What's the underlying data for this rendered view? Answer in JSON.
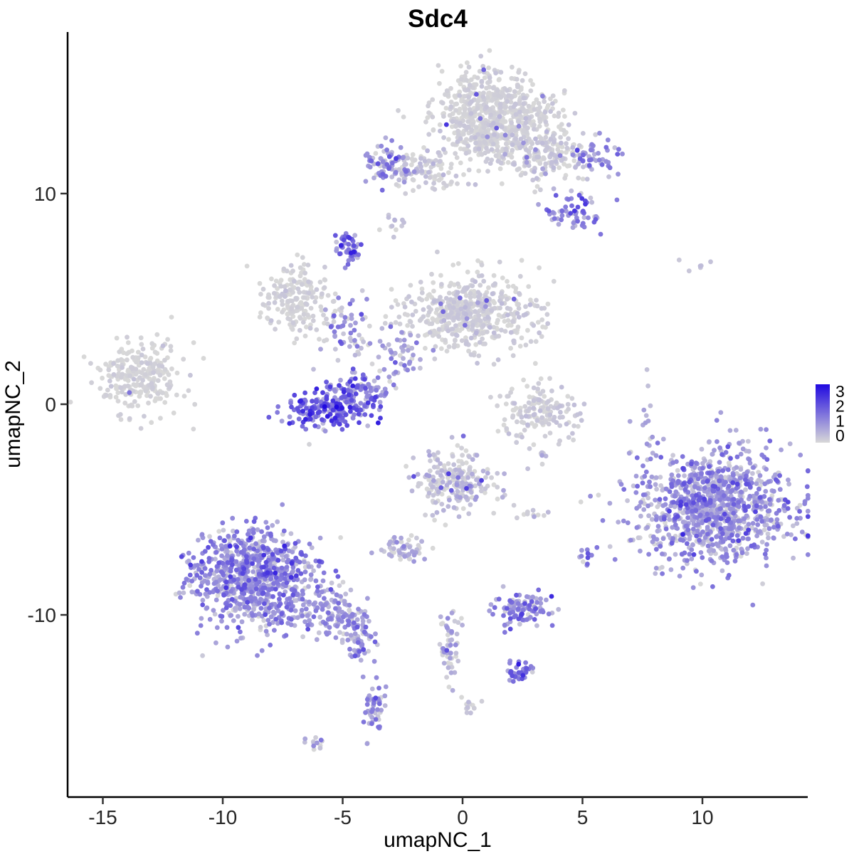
{
  "page": {
    "background": "#FFFFFF"
  },
  "chart_data": {
    "type": "scatter",
    "title": "Sdc4",
    "xlabel": "umapNC_1",
    "ylabel": "umapNC_2",
    "x_ticks": [
      -15,
      -10,
      -5,
      0,
      5,
      10
    ],
    "y_ticks": [
      -10,
      0,
      10
    ],
    "x_range": [
      -16.4,
      14.4
    ],
    "y_range": [
      -18.5,
      17.7
    ],
    "grid": false,
    "axis_color": "#000000",
    "tick_color": "#333333",
    "point_radius": 3.4,
    "seed": 42,
    "legend": {
      "position": "right",
      "ticks": [
        3,
        2,
        1,
        0
      ],
      "min": 0,
      "max": 3,
      "color_low": "#D8D8D8",
      "color_high": "#2009E0"
    },
    "clusters": [
      {
        "name": "top-main",
        "cx": 1.4,
        "cy": 13.9,
        "sx": 1.3,
        "sy": 0.95,
        "n": 600,
        "e": 0.06,
        "es": 0.1,
        "hot": 0.015,
        "he": 1.6
      },
      {
        "name": "top-main-south-neck",
        "cx": 1.0,
        "cy": 12.4,
        "sx": 0.8,
        "sy": 0.55,
        "n": 130,
        "e": 0.08,
        "es": 0.12
      },
      {
        "name": "top-main-east",
        "cx": 3.3,
        "cy": 11.9,
        "sx": 0.95,
        "sy": 0.75,
        "n": 190,
        "e": 0.12,
        "es": 0.18,
        "hot": 0.03,
        "he": 1.2
      },
      {
        "name": "top-right-purple",
        "cx": 5.35,
        "cy": 11.7,
        "sx": 0.5,
        "sy": 0.42,
        "n": 48,
        "e": 1.1,
        "es": 0.5
      },
      {
        "name": "top-right-purple-lower",
        "cx": 4.8,
        "cy": 9.2,
        "sx": 0.55,
        "sy": 0.5,
        "n": 60,
        "e": 1.15,
        "es": 0.55
      },
      {
        "name": "top-left-purple",
        "cx": -3.05,
        "cy": 11.4,
        "sx": 0.55,
        "sy": 0.5,
        "n": 75,
        "e": 0.85,
        "es": 0.5
      },
      {
        "name": "top-left-gray",
        "cx": -1.6,
        "cy": 11.1,
        "sx": 0.75,
        "sy": 0.5,
        "n": 95,
        "e": 0.15,
        "es": 0.2
      },
      {
        "name": "dots-north",
        "cx": -2.9,
        "cy": 8.5,
        "sx": 0.3,
        "sy": 0.25,
        "n": 12,
        "e": 0.25,
        "es": 0.25
      },
      {
        "name": "purple-knob",
        "cx": -4.72,
        "cy": 7.3,
        "sx": 0.27,
        "sy": 0.42,
        "n": 50,
        "e": 1.5,
        "es": 0.6
      },
      {
        "name": "mid-left-gray",
        "cx": -6.9,
        "cy": 4.9,
        "sx": 0.8,
        "sy": 0.85,
        "n": 190,
        "e": 0.07,
        "es": 0.1
      },
      {
        "name": "center-big-gray",
        "cx": 0.3,
        "cy": 4.3,
        "sx": 1.35,
        "sy": 0.95,
        "n": 520,
        "e": 0.1,
        "es": 0.14,
        "hot": 0.02,
        "he": 1.3
      },
      {
        "name": "center-west-purple",
        "cx": -5.0,
        "cy": 3.6,
        "sx": 0.4,
        "sy": 0.75,
        "n": 40,
        "e": 1.0,
        "es": 0.5
      },
      {
        "name": "center-bridge",
        "cx": -3.4,
        "cy": 2.7,
        "sx": 0.85,
        "sy": 0.7,
        "n": 40,
        "e": 0.45,
        "es": 0.45
      },
      {
        "name": "mid-purple-dots",
        "cx": -2.3,
        "cy": 2.1,
        "sx": 0.35,
        "sy": 0.65,
        "n": 20,
        "e": 0.9,
        "es": 0.5
      },
      {
        "name": "far-left-gray",
        "cx": -13.5,
        "cy": 1.3,
        "sx": 0.95,
        "sy": 0.85,
        "n": 250,
        "e": 0.05,
        "es": 0.09,
        "hot": 0.012,
        "he": 1.3
      },
      {
        "name": "center-purple-arc-a",
        "cx": -5.7,
        "cy": -0.35,
        "sx": 0.8,
        "sy": 0.5,
        "n": 165,
        "e": 1.6,
        "es": 0.7
      },
      {
        "name": "center-purple-arc-b",
        "cx": -4.35,
        "cy": 0.55,
        "sx": 0.6,
        "sy": 0.5,
        "n": 115,
        "e": 1.25,
        "es": 0.6
      },
      {
        "name": "right-crescent-gray",
        "cx": 3.2,
        "cy": -0.3,
        "sx": 0.8,
        "sy": 0.7,
        "n": 150,
        "e": 0.1,
        "es": 0.16,
        "hot": 0.02,
        "he": 1.6
      },
      {
        "name": "center-low-gray",
        "cx": -0.35,
        "cy": -3.6,
        "sx": 0.85,
        "sy": 0.8,
        "n": 210,
        "e": 0.25,
        "es": 0.35,
        "hot": 0.05,
        "he": 1.9
      },
      {
        "name": "small-mix",
        "cx": -2.5,
        "cy": -6.9,
        "sx": 0.45,
        "sy": 0.3,
        "n": 55,
        "e": 0.45,
        "es": 0.45
      },
      {
        "name": "right-big-purple",
        "cx": 10.4,
        "cy": -4.9,
        "sx": 1.6,
        "sy": 1.35,
        "n": 1050,
        "e": 0.85,
        "es": 0.55
      },
      {
        "name": "left-big-purple",
        "cx": -8.7,
        "cy": -8.2,
        "sx": 1.25,
        "sy": 1.15,
        "n": 820,
        "e": 1.0,
        "es": 0.55
      },
      {
        "name": "left-tail",
        "cx": -5.7,
        "cy": -9.9,
        "sx": 0.85,
        "sy": 0.6,
        "n": 140,
        "e": 0.8,
        "es": 0.45
      },
      {
        "name": "left-tail-tip",
        "cx": -4.35,
        "cy": -11.2,
        "sx": 0.35,
        "sy": 0.5,
        "n": 55,
        "e": 0.9,
        "es": 0.45
      },
      {
        "name": "bottom-purple",
        "cx": 2.45,
        "cy": -9.7,
        "sx": 0.6,
        "sy": 0.38,
        "n": 95,
        "e": 1.1,
        "es": 0.5
      },
      {
        "name": "dots-east",
        "cx": 5.1,
        "cy": -7.2,
        "sx": 0.18,
        "sy": 0.28,
        "n": 10,
        "e": 1.0,
        "es": 0.5
      },
      {
        "name": "strand-center",
        "cx": -0.5,
        "cy": -11.4,
        "sx": 0.25,
        "sy": 0.8,
        "n": 55,
        "e": 0.5,
        "es": 0.45
      },
      {
        "name": "small-purple-south",
        "cx": 2.35,
        "cy": -12.7,
        "sx": 0.3,
        "sy": 0.28,
        "n": 38,
        "e": 1.2,
        "es": 0.5
      },
      {
        "name": "strand-southwest",
        "cx": -3.7,
        "cy": -14.5,
        "sx": 0.22,
        "sy": 0.75,
        "n": 48,
        "e": 0.9,
        "es": 0.5
      },
      {
        "name": "tiny-southwest",
        "cx": -6.1,
        "cy": -16.1,
        "sx": 0.3,
        "sy": 0.14,
        "n": 12,
        "e": 0.7,
        "es": 0.4
      },
      {
        "name": "tiny-gray-south",
        "cx": 0.3,
        "cy": -14.3,
        "sx": 0.2,
        "sy": 0.3,
        "n": 12,
        "e": 0.2,
        "es": 0.2
      },
      {
        "name": "right-sparse-strand",
        "cx": 7.7,
        "cy": -0.9,
        "sx": 0.16,
        "sy": 1.15,
        "n": 14,
        "e": 0.5,
        "es": 0.4
      },
      {
        "name": "top-right-dots",
        "cx": 9.7,
        "cy": 6.6,
        "sx": 0.4,
        "sy": 0.2,
        "n": 6,
        "e": 0.3,
        "es": 0.2
      },
      {
        "name": "pair-dots",
        "cx": 3.2,
        "cy": -2.4,
        "sx": 0.28,
        "sy": 0.2,
        "n": 8,
        "e": 0.3,
        "es": 0.25
      },
      {
        "name": "gray-mid-right",
        "cx": 2.9,
        "cy": -5.3,
        "sx": 0.3,
        "sy": 0.15,
        "n": 10,
        "e": 0.2,
        "es": 0.2
      }
    ]
  }
}
